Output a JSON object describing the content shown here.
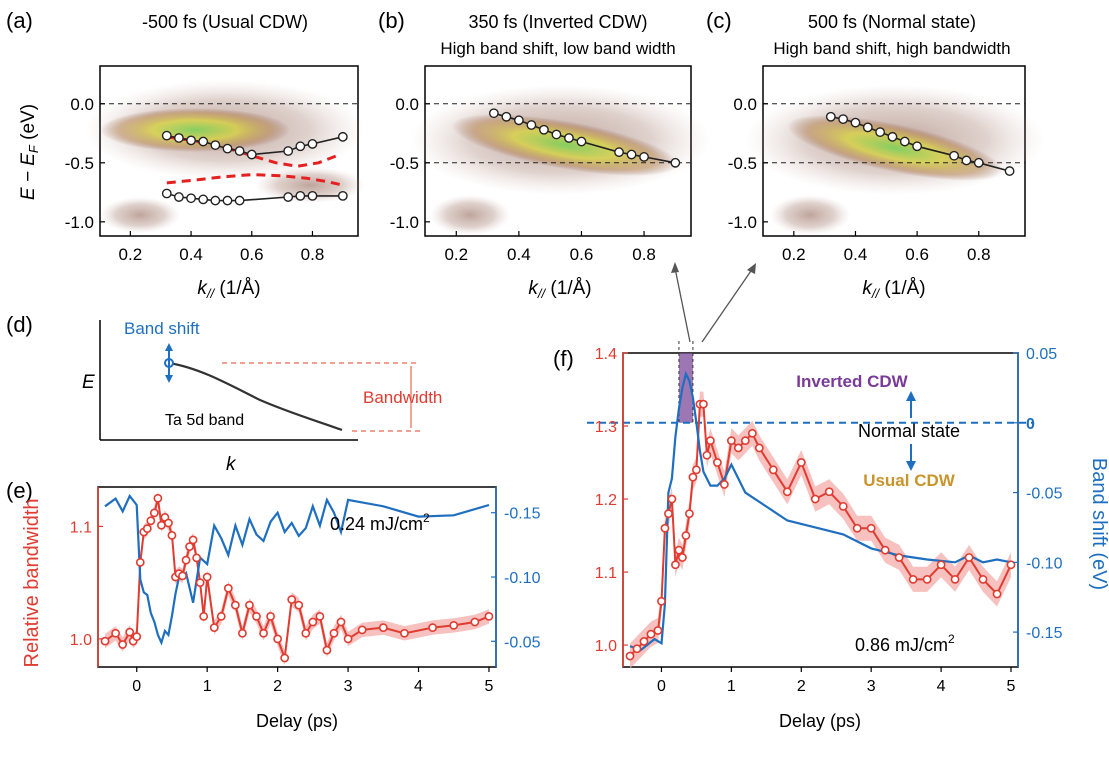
{
  "panels": {
    "a": {
      "letter": "(a)",
      "title": "-500 fs (Usual CDW)",
      "subtitle": ""
    },
    "b": {
      "letter": "(b)",
      "title": "350 fs (Inverted CDW)",
      "subtitle": "High band shift, low band width"
    },
    "c": {
      "letter": "(c)",
      "title": "500 fs (Normal state)",
      "subtitle": "High band shift, high bandwidth"
    },
    "d": {
      "letter": "(d)"
    },
    "e": {
      "letter": "(e)",
      "fluence": "0.24 mJ/cm",
      "fluence_sup": "2"
    },
    "f": {
      "letter": "(f)",
      "fluence": "0.86 mJ/cm",
      "fluence_sup": "2"
    }
  },
  "arpes_axes": {
    "xlabel_main": "k",
    "xlabel_sub": "//",
    "xlabel_unit": " (1/Å)",
    "ylabel_main": "E − E",
    "ylabel_sub": "F",
    "ylabel_unit": " (eV)",
    "xticks": [
      0.2,
      0.4,
      0.6,
      0.8
    ],
    "yticks": [
      0.0,
      -0.5,
      -1.0
    ],
    "xlim": [
      0.1,
      0.95
    ],
    "ylim": [
      -1.12,
      0.32
    ]
  },
  "schematic": {
    "band_shift_label": "Band shift",
    "bandwidth_label": "Bandwidth",
    "band_label": "Ta 5d band",
    "e_axis": "E",
    "k_axis": "k"
  },
  "time_axes": {
    "xlabel": "Delay (ps)",
    "e_left_label": "Relative bandwidth",
    "f_right_label": "Band shift (eV)",
    "e_xticks": [
      0,
      1,
      2,
      3,
      4,
      5
    ],
    "e_left_ticks": [
      1.0,
      1.1
    ],
    "e_right_ticks": [
      -0.05,
      -0.1,
      -0.15
    ],
    "f_xticks": [
      0,
      1,
      2,
      3,
      4,
      5
    ],
    "f_left_ticks": [
      1.0,
      1.1,
      1.2,
      1.3,
      1.4
    ],
    "f_right_ticks": [
      0.05,
      0,
      -0.05,
      -0.1,
      -0.15
    ]
  },
  "annotations": {
    "inverted": "Inverted CDW",
    "normal": "Normal state",
    "usual": "Usual CDW"
  },
  "colors": {
    "bandwidth": "#e03c31",
    "bandwidth_band": "#f2a7a3",
    "band_shift": "#1f6fc0",
    "inverted_shade": "#7b4a9a",
    "inverted_text": "#7a3a97",
    "usual_text": "#c8952c",
    "dashed_red": "#e52020"
  },
  "chart_data": [
    {
      "panel": "a",
      "type": "scatter",
      "xlabel": "k// (1/Å)",
      "ylabel": "E − EF (eV)",
      "xlim": [
        0.1,
        0.95
      ],
      "ylim": [
        -1.12,
        0.32
      ],
      "series": [
        {
          "x": [
            0.32,
            0.36,
            0.4,
            0.44,
            0.48,
            0.52,
            0.56,
            0.6,
            0.72,
            0.76,
            0.8,
            0.9
          ],
          "y": [
            -0.27,
            -0.29,
            -0.31,
            -0.32,
            -0.35,
            -0.38,
            -0.4,
            -0.43,
            -0.4,
            -0.36,
            -0.34,
            -0.28
          ]
        },
        {
          "x": [
            0.32,
            0.36,
            0.4,
            0.44,
            0.48,
            0.52,
            0.56,
            0.72,
            0.76,
            0.8,
            0.9
          ],
          "y": [
            -0.76,
            -0.79,
            -0.8,
            -0.81,
            -0.82,
            -0.82,
            -0.82,
            -0.79,
            -0.78,
            -0.78,
            -0.78
          ]
        }
      ],
      "dashed_curves": [
        {
          "x": [
            0.32,
            0.4,
            0.5,
            0.6,
            0.68,
            0.75,
            0.82,
            0.88
          ],
          "y": [
            -0.28,
            -0.31,
            -0.36,
            -0.44,
            -0.5,
            -0.53,
            -0.5,
            -0.44
          ]
        },
        {
          "x": [
            0.32,
            0.4,
            0.5,
            0.6,
            0.7,
            0.78,
            0.85,
            0.9
          ],
          "y": [
            -0.67,
            -0.65,
            -0.62,
            -0.6,
            -0.61,
            -0.63,
            -0.66,
            -0.69
          ]
        }
      ],
      "reference_lines_y": [
        0.0
      ]
    },
    {
      "panel": "b",
      "type": "scatter",
      "xlabel": "k// (1/Å)",
      "xlim": [
        0.1,
        0.95
      ],
      "ylim": [
        -1.12,
        0.32
      ],
      "series": [
        {
          "x": [
            0.32,
            0.36,
            0.4,
            0.44,
            0.48,
            0.52,
            0.56,
            0.6,
            0.72,
            0.76,
            0.8,
            0.9
          ],
          "y": [
            -0.08,
            -0.11,
            -0.14,
            -0.18,
            -0.22,
            -0.26,
            -0.29,
            -0.32,
            -0.41,
            -0.43,
            -0.45,
            -0.5
          ]
        }
      ],
      "reference_lines_y": [
        0.0,
        -0.5
      ]
    },
    {
      "panel": "c",
      "type": "scatter",
      "xlabel": "k// (1/Å)",
      "xlim": [
        0.1,
        0.95
      ],
      "ylim": [
        -1.12,
        0.32
      ],
      "series": [
        {
          "x": [
            0.32,
            0.36,
            0.4,
            0.44,
            0.48,
            0.52,
            0.56,
            0.6,
            0.72,
            0.76,
            0.8,
            0.9
          ],
          "y": [
            -0.11,
            -0.13,
            -0.16,
            -0.2,
            -0.24,
            -0.28,
            -0.32,
            -0.36,
            -0.44,
            -0.48,
            -0.5,
            -0.57
          ]
        }
      ],
      "reference_lines_y": [
        0.0,
        -0.5
      ]
    },
    {
      "panel": "e",
      "type": "line",
      "xlabel": "Delay (ps)",
      "ylabel": "Relative bandwidth",
      "xlim": [
        -0.55,
        5.1
      ],
      "ylim_left": [
        0.975,
        1.135
      ],
      "ylim_right": [
        -0.03,
        -0.17
      ],
      "series": [
        {
          "axis": "left",
          "x": [
            -0.45,
            -0.3,
            -0.2,
            -0.1,
            -0.05,
            0.0,
            0.05,
            0.1,
            0.15,
            0.2,
            0.25,
            0.3,
            0.35,
            0.4,
            0.45,
            0.5,
            0.55,
            0.6,
            0.65,
            0.7,
            0.75,
            0.8,
            0.85,
            0.9,
            0.95,
            1.0,
            1.1,
            1.2,
            1.3,
            1.4,
            1.5,
            1.6,
            1.7,
            1.8,
            1.9,
            2.0,
            2.1,
            2.2,
            2.3,
            2.4,
            2.5,
            2.6,
            2.7,
            2.8,
            2.9,
            3.0,
            3.2,
            3.5,
            3.8,
            4.2,
            4.5,
            4.8,
            5.0
          ],
          "y": [
            0.998,
            1.005,
            0.995,
            1.006,
            0.998,
            1.002,
            1.068,
            1.095,
            1.098,
            1.105,
            1.112,
            1.125,
            1.101,
            1.108,
            1.103,
            1.092,
            1.055,
            1.058,
            1.056,
            1.07,
            1.082,
            1.088,
            1.072,
            1.05,
            1.02,
            1.055,
            1.01,
            1.02,
            1.045,
            1.03,
            1.005,
            1.03,
            1.02,
            1.005,
            1.02,
            1.0,
            0.983,
            1.035,
            1.03,
            1.005,
            1.015,
            1.02,
            0.99,
            1.005,
            1.015,
            1.0,
            1.008,
            1.01,
            1.005,
            1.01,
            1.012,
            1.015,
            1.02
          ]
        },
        {
          "axis": "right",
          "x": [
            -0.45,
            -0.3,
            -0.2,
            -0.1,
            0.0,
            0.05,
            0.1,
            0.15,
            0.2,
            0.25,
            0.3,
            0.35,
            0.4,
            0.45,
            0.5,
            0.55,
            0.6,
            0.65,
            0.7,
            0.8,
            0.9,
            1.0,
            1.1,
            1.2,
            1.3,
            1.4,
            1.5,
            1.6,
            1.7,
            1.8,
            1.9,
            2.0,
            2.1,
            2.2,
            2.3,
            2.4,
            2.5,
            2.6,
            2.7,
            2.8,
            2.9,
            3.0,
            3.5,
            4.0,
            4.5,
            5.0
          ],
          "y": [
            -0.155,
            -0.161,
            -0.151,
            -0.163,
            -0.156,
            -0.098,
            -0.088,
            -0.086,
            -0.072,
            -0.065,
            -0.055,
            -0.049,
            -0.058,
            -0.055,
            -0.07,
            -0.087,
            -0.1,
            -0.1,
            -0.103,
            -0.08,
            -0.115,
            -0.11,
            -0.14,
            -0.13,
            -0.117,
            -0.14,
            -0.125,
            -0.145,
            -0.133,
            -0.128,
            -0.143,
            -0.15,
            -0.135,
            -0.142,
            -0.132,
            -0.138,
            -0.155,
            -0.14,
            -0.16,
            -0.15,
            -0.135,
            -0.16,
            -0.155,
            -0.147,
            -0.148,
            -0.156
          ]
        }
      ]
    },
    {
      "panel": "f",
      "type": "line",
      "xlabel": "Delay (ps)",
      "ylabel_right": "Band shift (eV)",
      "xlim": [
        -0.55,
        5.1
      ],
      "ylim_left": [
        0.97,
        1.4
      ],
      "ylim_right": [
        -0.175,
        0.05
      ],
      "series": [
        {
          "axis": "left",
          "x": [
            -0.45,
            -0.35,
            -0.25,
            -0.15,
            -0.05,
            0.0,
            0.05,
            0.1,
            0.15,
            0.2,
            0.25,
            0.3,
            0.35,
            0.4,
            0.45,
            0.5,
            0.55,
            0.6,
            0.65,
            0.7,
            0.8,
            0.9,
            1.0,
            1.1,
            1.2,
            1.3,
            1.4,
            1.6,
            1.8,
            2.0,
            2.2,
            2.4,
            2.6,
            2.8,
            3.0,
            3.2,
            3.4,
            3.6,
            3.8,
            4.0,
            4.2,
            4.4,
            4.6,
            4.8,
            5.0
          ],
          "y": [
            0.985,
            0.995,
            1.005,
            1.015,
            1.02,
            1.06,
            1.16,
            1.18,
            1.2,
            1.11,
            1.13,
            1.12,
            1.15,
            1.18,
            1.23,
            1.24,
            1.33,
            1.33,
            1.26,
            1.28,
            1.25,
            1.22,
            1.28,
            1.27,
            1.28,
            1.29,
            1.27,
            1.24,
            1.21,
            1.25,
            1.2,
            1.21,
            1.19,
            1.16,
            1.16,
            1.13,
            1.12,
            1.09,
            1.09,
            1.11,
            1.09,
            1.12,
            1.09,
            1.07,
            1.11
          ]
        },
        {
          "axis": "right",
          "x": [
            -0.45,
            -0.3,
            -0.1,
            0.0,
            0.05,
            0.1,
            0.15,
            0.2,
            0.25,
            0.3,
            0.35,
            0.4,
            0.45,
            0.5,
            0.55,
            0.6,
            0.7,
            0.8,
            0.9,
            1.0,
            1.2,
            1.5,
            1.8,
            2.2,
            2.6,
            3.0,
            3.4,
            3.8,
            4.2,
            4.4,
            4.6,
            4.8,
            5.0
          ],
          "y": [
            -0.16,
            -0.163,
            -0.155,
            -0.158,
            -0.13,
            -0.05,
            -0.04,
            -0.01,
            0.01,
            0.025,
            0.035,
            0.03,
            0.018,
            0.0,
            -0.02,
            -0.035,
            -0.045,
            -0.045,
            -0.04,
            -0.03,
            -0.05,
            -0.06,
            -0.07,
            -0.075,
            -0.08,
            -0.09,
            -0.095,
            -0.098,
            -0.1,
            -0.095,
            -0.1,
            -0.098,
            -0.1
          ]
        }
      ],
      "reference_line_right_y": 0,
      "shaded_interval_x": [
        0.25,
        0.45
      ]
    }
  ]
}
